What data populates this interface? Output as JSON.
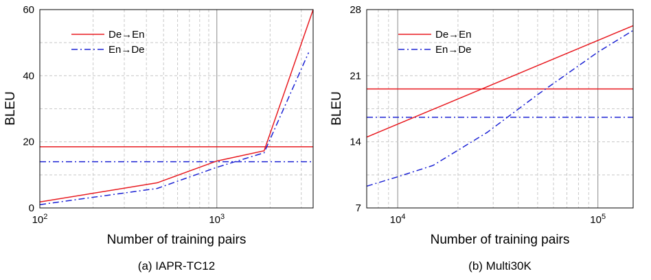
{
  "chart_data": [
    {
      "type": "line",
      "caption": "(a) IAPR-TC12",
      "xlabel": "Number of training pairs",
      "ylabel": "BLEU",
      "x_scale": "log",
      "xlim": [
        100,
        3500
      ],
      "ylim": [
        0,
        60
      ],
      "x_ticks": [
        {
          "value": 100,
          "base": "10",
          "exp": "2"
        },
        {
          "value": 1000,
          "base": "10",
          "exp": "3"
        }
      ],
      "y_ticks": [
        0,
        20,
        40,
        60
      ],
      "grid": "log-minor dashed, decade solid",
      "legend": {
        "position": "top-left"
      },
      "series": [
        {
          "name": "De→En",
          "color": "#e8191f",
          "dash": "solid",
          "x": [
            100,
            460,
            1000,
            1850,
            3500
          ],
          "y": [
            1.8,
            7.6,
            14.2,
            17.3,
            60.0
          ]
        },
        {
          "name": "En→De",
          "color": "#1a21d4",
          "dash": "dashdot",
          "x": [
            100,
            460,
            1000,
            1850,
            3300
          ],
          "y": [
            1.0,
            5.9,
            12.3,
            16.7,
            47.0
          ]
        }
      ],
      "hlines": [
        {
          "series": "De→En",
          "color": "#e8191f",
          "dash": "solid",
          "y": 18.5
        },
        {
          "series": "En→De",
          "color": "#1a21d4",
          "dash": "dashdot",
          "y": 14.0
        }
      ]
    },
    {
      "type": "line",
      "caption": "(b) Multi30K",
      "xlabel": "Number of training pairs",
      "ylabel": "BLEU",
      "x_scale": "log",
      "xlim": [
        7000,
        150000
      ],
      "ylim": [
        7,
        28
      ],
      "x_ticks": [
        {
          "value": 10000,
          "base": "10",
          "exp": "4"
        },
        {
          "value": 100000,
          "base": "10",
          "exp": "5"
        }
      ],
      "y_ticks": [
        7,
        14,
        21,
        28
      ],
      "grid": "log-minor dashed, decade solid",
      "legend": {
        "position": "top-left"
      },
      "series": [
        {
          "name": "De→En",
          "color": "#e8191f",
          "dash": "solid",
          "x": [
            7000,
            150000
          ],
          "y": [
            14.5,
            26.3
          ]
        },
        {
          "name": "En→De",
          "color": "#1a21d4",
          "dash": "dashdot",
          "x": [
            7000,
            10000,
            15000,
            28000,
            50000,
            100000,
            150000
          ],
          "y": [
            9.3,
            10.3,
            11.5,
            15.0,
            19.0,
            23.5,
            25.8
          ]
        }
      ],
      "hlines": [
        {
          "series": "De→En",
          "color": "#e8191f",
          "dash": "solid",
          "y": 19.6
        },
        {
          "series": "En→De",
          "color": "#1a21d4",
          "dash": "dashdot",
          "y": 16.6
        }
      ]
    }
  ]
}
